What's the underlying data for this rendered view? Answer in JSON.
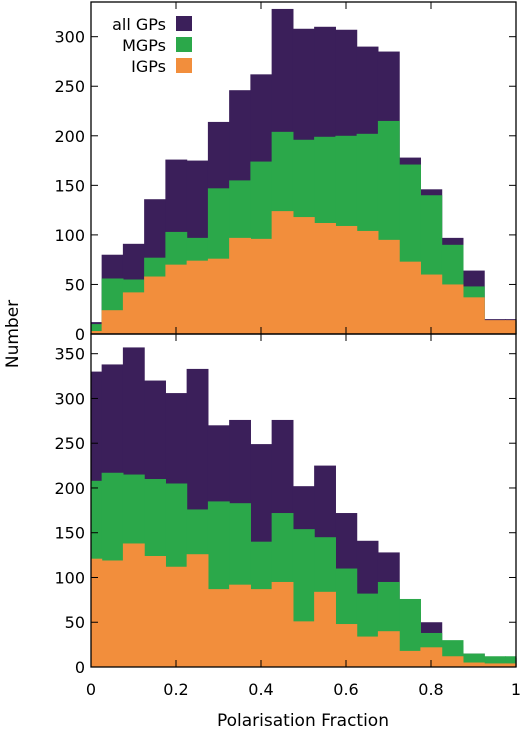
{
  "figure": {
    "xlabel": "Polarisation Fraction",
    "ylabel": "Number"
  },
  "chart_data": [
    {
      "type": "bar",
      "stacked": false,
      "histogram": true,
      "panel": "top",
      "title": "",
      "xlabel": "",
      "ylabel": "",
      "xlim": [
        0,
        1
      ],
      "ylim": [
        0,
        335
      ],
      "bin_edges": [
        0,
        0.025,
        0.075,
        0.125,
        0.175,
        0.225,
        0.275,
        0.325,
        0.375,
        0.425,
        0.475,
        0.525,
        0.575,
        0.625,
        0.675,
        0.725,
        0.775,
        0.825,
        0.875,
        0.925,
        0.975,
        1.0
      ],
      "xticks": [
        {
          "value": 0,
          "label": "0"
        },
        {
          "value": 0.2,
          "label": "0.2"
        },
        {
          "value": 0.4,
          "label": "0.4"
        },
        {
          "value": 0.6,
          "label": "0.6"
        },
        {
          "value": 0.8,
          "label": "0.8"
        },
        {
          "value": 1,
          "label": "1"
        }
      ],
      "yticks": [
        {
          "value": 0,
          "label": "0"
        },
        {
          "value": 50,
          "label": "50"
        },
        {
          "value": 100,
          "label": "100"
        },
        {
          "value": 150,
          "label": "150"
        },
        {
          "value": 200,
          "label": "200"
        },
        {
          "value": 250,
          "label": "250"
        },
        {
          "value": 300,
          "label": "300"
        }
      ],
      "show_xtick_labels": false,
      "legend": {
        "position": "top-left"
      },
      "series": [
        {
          "name": "all GPs",
          "color": "#3b1f5a",
          "values": [
            12,
            80,
            91,
            136,
            176,
            175,
            214,
            246,
            262,
            328,
            308,
            310,
            307,
            290,
            285,
            178,
            146,
            97,
            64,
            15,
            15
          ]
        },
        {
          "name": "MGPs",
          "color": "#2ba84a",
          "values": [
            10,
            56,
            55,
            77,
            103,
            97,
            147,
            155,
            174,
            204,
            196,
            199,
            200,
            202,
            215,
            171,
            140,
            90,
            48,
            13,
            13
          ]
        },
        {
          "name": "IGPs",
          "color": "#f28e3c",
          "values": [
            3,
            24,
            42,
            58,
            70,
            74,
            76,
            97,
            96,
            124,
            118,
            112,
            109,
            104,
            95,
            73,
            60,
            50,
            37,
            14,
            14
          ]
        }
      ]
    },
    {
      "type": "bar",
      "stacked": false,
      "histogram": true,
      "panel": "bottom",
      "title": "",
      "xlabel": "",
      "ylabel": "",
      "xlim": [
        0,
        1
      ],
      "ylim": [
        0,
        372
      ],
      "bin_edges": [
        0,
        0.025,
        0.075,
        0.125,
        0.175,
        0.225,
        0.275,
        0.325,
        0.375,
        0.425,
        0.475,
        0.525,
        0.575,
        0.625,
        0.675,
        0.725,
        0.775,
        0.825,
        0.875,
        0.925,
        0.975,
        1.0
      ],
      "xticks": [
        {
          "value": 0,
          "label": "0"
        },
        {
          "value": 0.2,
          "label": "0.2"
        },
        {
          "value": 0.4,
          "label": "0.4"
        },
        {
          "value": 0.6,
          "label": "0.6"
        },
        {
          "value": 0.8,
          "label": "0.8"
        },
        {
          "value": 1,
          "label": "1"
        }
      ],
      "yticks": [
        {
          "value": 0,
          "label": "0"
        },
        {
          "value": 50,
          "label": "50"
        },
        {
          "value": 100,
          "label": "100"
        },
        {
          "value": 150,
          "label": "150"
        },
        {
          "value": 200,
          "label": "200"
        },
        {
          "value": 250,
          "label": "250"
        },
        {
          "value": 300,
          "label": "300"
        },
        {
          "value": 350,
          "label": "350"
        }
      ],
      "show_xtick_labels": true,
      "series": [
        {
          "name": "all GPs",
          "color": "#3b1f5a",
          "values": [
            330,
            338,
            357,
            320,
            306,
            333,
            270,
            276,
            249,
            276,
            202,
            225,
            172,
            141,
            128,
            61,
            50,
            24,
            15,
            10,
            10
          ]
        },
        {
          "name": "MGPs",
          "color": "#2ba84a",
          "values": [
            208,
            217,
            215,
            210,
            205,
            176,
            185,
            183,
            140,
            172,
            154,
            145,
            110,
            82,
            95,
            76,
            38,
            30,
            15,
            12,
            12
          ]
        },
        {
          "name": "IGPs",
          "color": "#f28e3c",
          "values": [
            121,
            119,
            138,
            124,
            112,
            126,
            87,
            92,
            87,
            95,
            51,
            84,
            48,
            34,
            40,
            18,
            22,
            12,
            5,
            4,
            4
          ]
        }
      ]
    }
  ]
}
